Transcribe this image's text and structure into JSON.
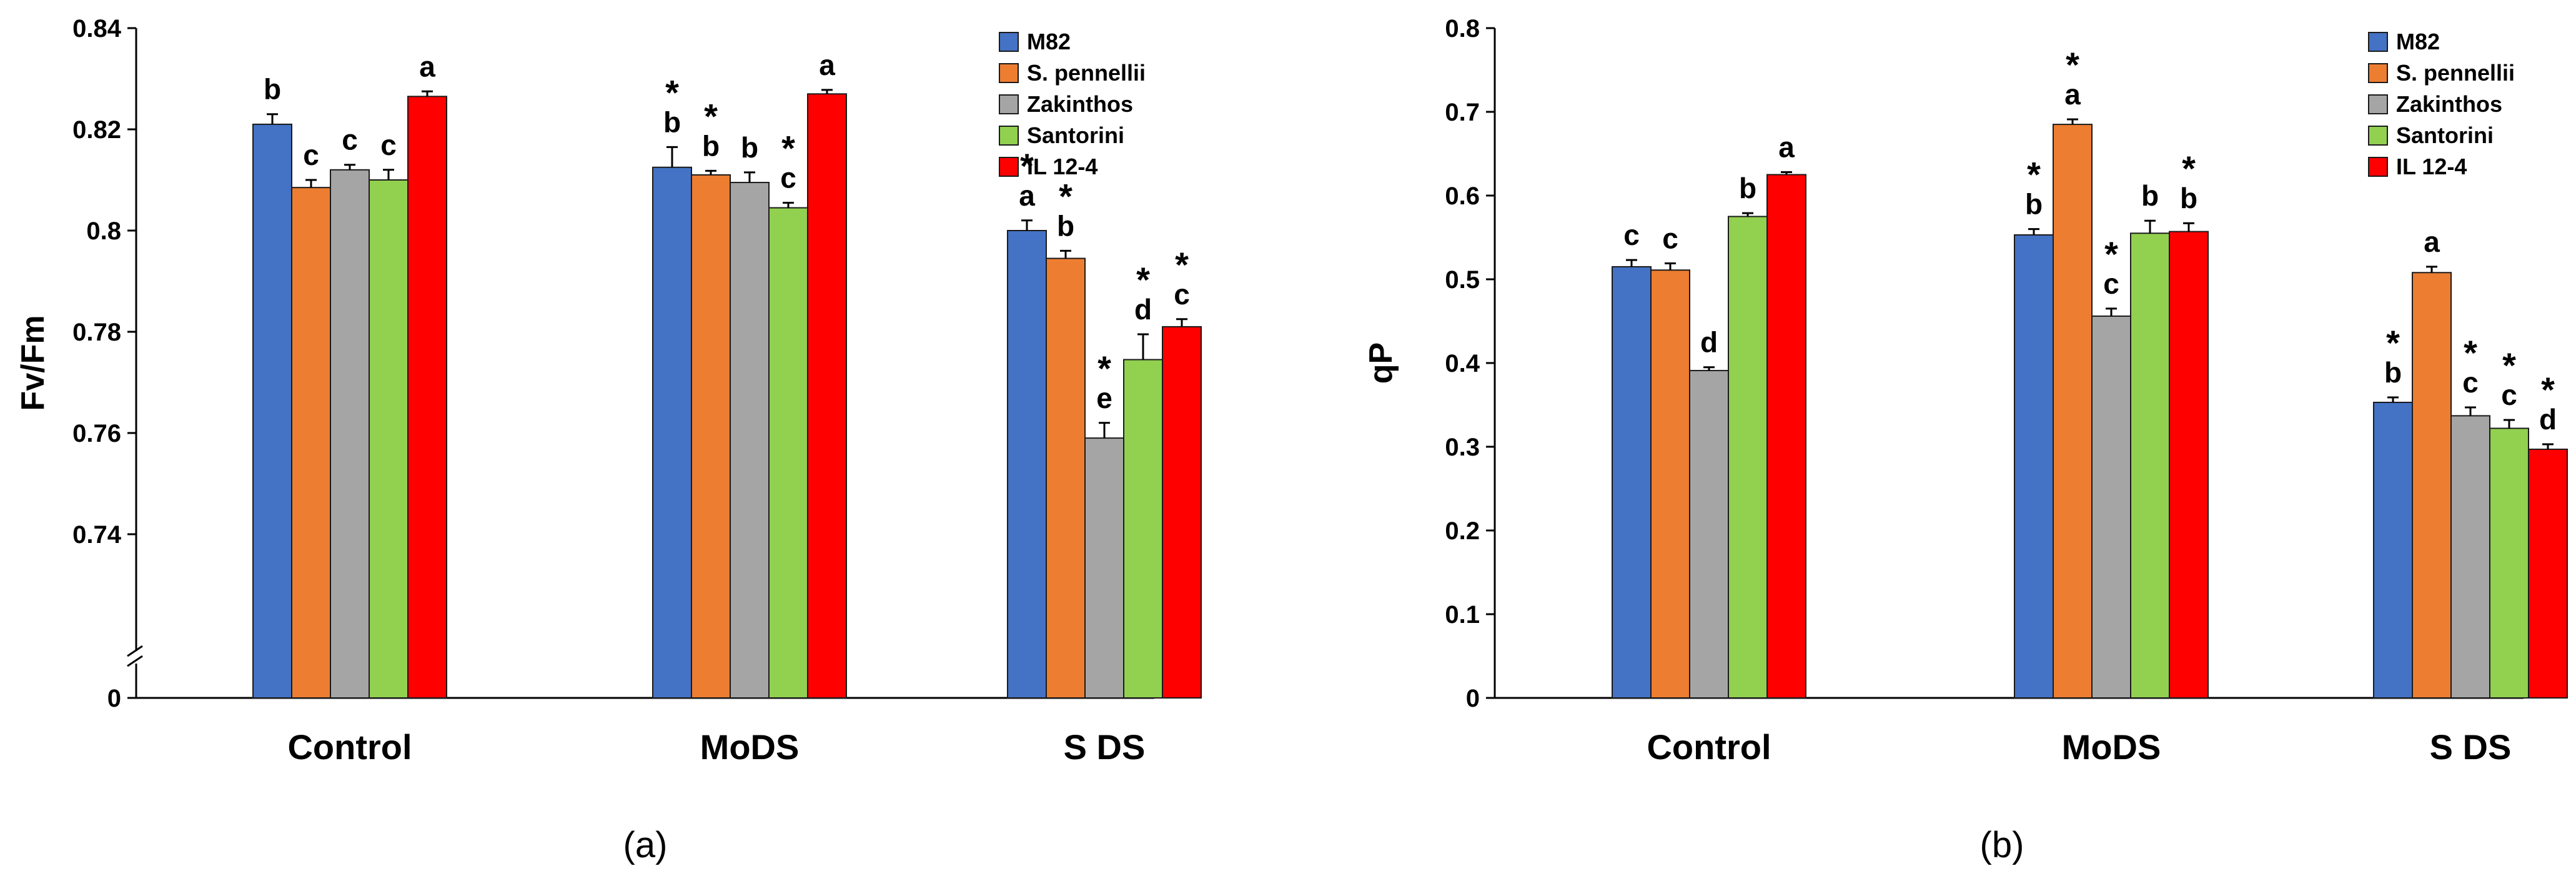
{
  "chart_data": [
    {
      "type": "bar",
      "panel_label": "(a)",
      "ylabel": "Fv/Fm",
      "categories": [
        "Control",
        "MoDS",
        "S DS"
      ],
      "ylim": [
        0.72,
        0.84
      ],
      "axis_break": true,
      "yticks": [
        0.74,
        0.76,
        0.78,
        0.8,
        0.82,
        0.84
      ],
      "ytick_labels": [
        "0.74",
        "0.76",
        "0.78",
        "0.8",
        "0.82",
        "0.84"
      ],
      "baseline_label": "0",
      "legend_position": "top-right",
      "series": [
        {
          "name": "M82",
          "color": "#4472C4",
          "values": [
            0.821,
            0.8125,
            0.8
          ],
          "errors": [
            0.002,
            0.004,
            0.002
          ],
          "letters": [
            "b",
            "b",
            "a"
          ],
          "stars": [
            false,
            true,
            true
          ]
        },
        {
          "name": "S. pennellii",
          "color": "#ED7D31",
          "values": [
            0.8085,
            0.811,
            0.7945
          ],
          "errors": [
            0.0015,
            0.0008,
            0.0015
          ],
          "letters": [
            "c",
            "b",
            "b"
          ],
          "stars": [
            false,
            true,
            true
          ]
        },
        {
          "name": "Zakinthos",
          "color": "#A5A5A5",
          "values": [
            0.812,
            0.8095,
            0.759
          ],
          "errors": [
            0.001,
            0.002,
            0.003
          ],
          "letters": [
            "c",
            "b",
            "e"
          ],
          "stars": [
            false,
            false,
            true
          ]
        },
        {
          "name": "Santorini",
          "color": "#92D050",
          "values": [
            0.81,
            0.8045,
            0.7745
          ],
          "errors": [
            0.002,
            0.001,
            0.005
          ],
          "letters": [
            "c",
            "c",
            "d"
          ],
          "stars": [
            false,
            true,
            true
          ]
        },
        {
          "name": "IL 12-4",
          "color": "#FF0000",
          "values": [
            0.8265,
            0.827,
            0.781
          ],
          "errors": [
            0.001,
            0.0008,
            0.0015
          ],
          "letters": [
            "a",
            "a",
            "c"
          ],
          "stars": [
            false,
            false,
            true
          ]
        }
      ]
    },
    {
      "type": "bar",
      "panel_label": "(b)",
      "ylabel": "qP",
      "categories": [
        "Control",
        "MoDS",
        "S DS"
      ],
      "ylim": [
        0,
        0.8
      ],
      "axis_break": false,
      "yticks": [
        0,
        0.1,
        0.2,
        0.3,
        0.4,
        0.5,
        0.6,
        0.7,
        0.8
      ],
      "ytick_labels": [
        "0",
        "0.1",
        "0.2",
        "0.3",
        "0.4",
        "0.5",
        "0.6",
        "0.7",
        "0.8"
      ],
      "legend_position": "top-right",
      "series": [
        {
          "name": "M82",
          "color": "#4472C4",
          "values": [
            0.515,
            0.553,
            0.353
          ],
          "errors": [
            0.008,
            0.007,
            0.006
          ],
          "letters": [
            "c",
            "b",
            "b"
          ],
          "stars": [
            false,
            true,
            true
          ]
        },
        {
          "name": "S. pennellii",
          "color": "#ED7D31",
          "values": [
            0.511,
            0.685,
            0.508
          ],
          "errors": [
            0.008,
            0.006,
            0.007
          ],
          "letters": [
            "c",
            "a",
            "a"
          ],
          "stars": [
            false,
            true,
            false
          ]
        },
        {
          "name": "Zakinthos",
          "color": "#A5A5A5",
          "values": [
            0.391,
            0.456,
            0.337
          ],
          "errors": [
            0.004,
            0.009,
            0.01
          ],
          "letters": [
            "d",
            "c",
            "c"
          ],
          "stars": [
            false,
            true,
            true
          ]
        },
        {
          "name": "Santorini",
          "color": "#92D050",
          "values": [
            0.575,
            0.555,
            0.322
          ],
          "errors": [
            0.004,
            0.015,
            0.01
          ],
          "letters": [
            "b",
            "b",
            "c"
          ],
          "stars": [
            false,
            false,
            true
          ]
        },
        {
          "name": "IL 12-4",
          "color": "#FF0000",
          "values": [
            0.625,
            0.557,
            0.297
          ],
          "errors": [
            0.003,
            0.01,
            0.006
          ],
          "letters": [
            "a",
            "b",
            "d"
          ],
          "stars": [
            false,
            true,
            true
          ]
        }
      ]
    }
  ]
}
